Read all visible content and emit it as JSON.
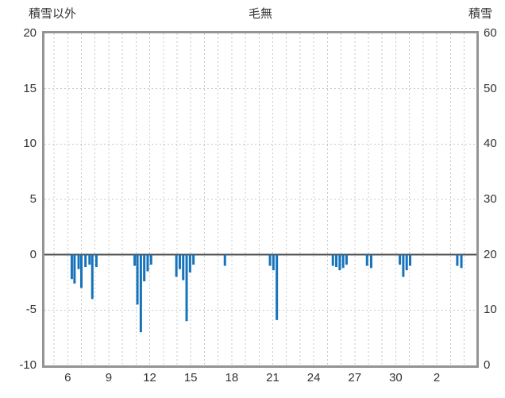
{
  "header": {
    "left_axis_title": "積雪以外",
    "title": "毛無",
    "right_axis_title": "積雪"
  },
  "colors": {
    "bar": "#1673bb",
    "grid": "#c8c8c8",
    "zero_line": "#4d4d4d",
    "border": "#949494",
    "text": "#333333"
  },
  "chart_data": {
    "type": "bar",
    "title": "毛無",
    "left_axis": {
      "label": "積雪以外",
      "min": -10,
      "max": 20,
      "ticks": [
        20,
        15,
        10,
        5,
        0,
        -5,
        -10
      ]
    },
    "right_axis": {
      "label": "積雪",
      "min": 0,
      "max": 60,
      "ticks": [
        60,
        50,
        40,
        30,
        20,
        10,
        0
      ]
    },
    "x_axis": {
      "start_day": 4.3,
      "end_day": 35.9,
      "tick_days": [
        6,
        9,
        12,
        15,
        18,
        21,
        24,
        27,
        30,
        33
      ],
      "tick_labels": [
        "6",
        "9",
        "12",
        "15",
        "18",
        "21",
        "24",
        "27",
        "30",
        "2"
      ],
      "grid_every_days": 1
    },
    "grid": true,
    "legend": "none",
    "series": [
      {
        "name": "積雪以外",
        "type": "bar",
        "color": "#1673bb",
        "points": [
          [
            6.3,
            -2.2
          ],
          [
            6.5,
            -2.6
          ],
          [
            6.8,
            -1.3
          ],
          [
            7.0,
            -3.0
          ],
          [
            7.3,
            -1.1
          ],
          [
            7.6,
            -0.9
          ],
          [
            7.8,
            -4.0
          ],
          [
            8.1,
            -1.1
          ],
          [
            10.9,
            -1.0
          ],
          [
            11.1,
            -4.5
          ],
          [
            11.35,
            -7.0
          ],
          [
            11.6,
            -2.4
          ],
          [
            11.85,
            -1.5
          ],
          [
            12.1,
            -0.9
          ],
          [
            13.95,
            -2.0
          ],
          [
            14.2,
            -1.3
          ],
          [
            14.45,
            -2.3
          ],
          [
            14.7,
            -6.0
          ],
          [
            14.95,
            -1.6
          ],
          [
            15.2,
            -0.9
          ],
          [
            17.5,
            -1.0
          ],
          [
            20.8,
            -1.0
          ],
          [
            21.05,
            -1.4
          ],
          [
            21.3,
            -5.9
          ],
          [
            25.4,
            -1.0
          ],
          [
            25.65,
            -1.1
          ],
          [
            25.9,
            -1.4
          ],
          [
            26.15,
            -1.2
          ],
          [
            26.4,
            -0.9
          ],
          [
            27.9,
            -1.0
          ],
          [
            28.2,
            -1.2
          ],
          [
            30.3,
            -0.9
          ],
          [
            30.55,
            -2.0
          ],
          [
            30.8,
            -1.4
          ],
          [
            31.05,
            -1.0
          ],
          [
            34.5,
            -1.0
          ],
          [
            34.8,
            -1.2
          ]
        ]
      }
    ]
  }
}
